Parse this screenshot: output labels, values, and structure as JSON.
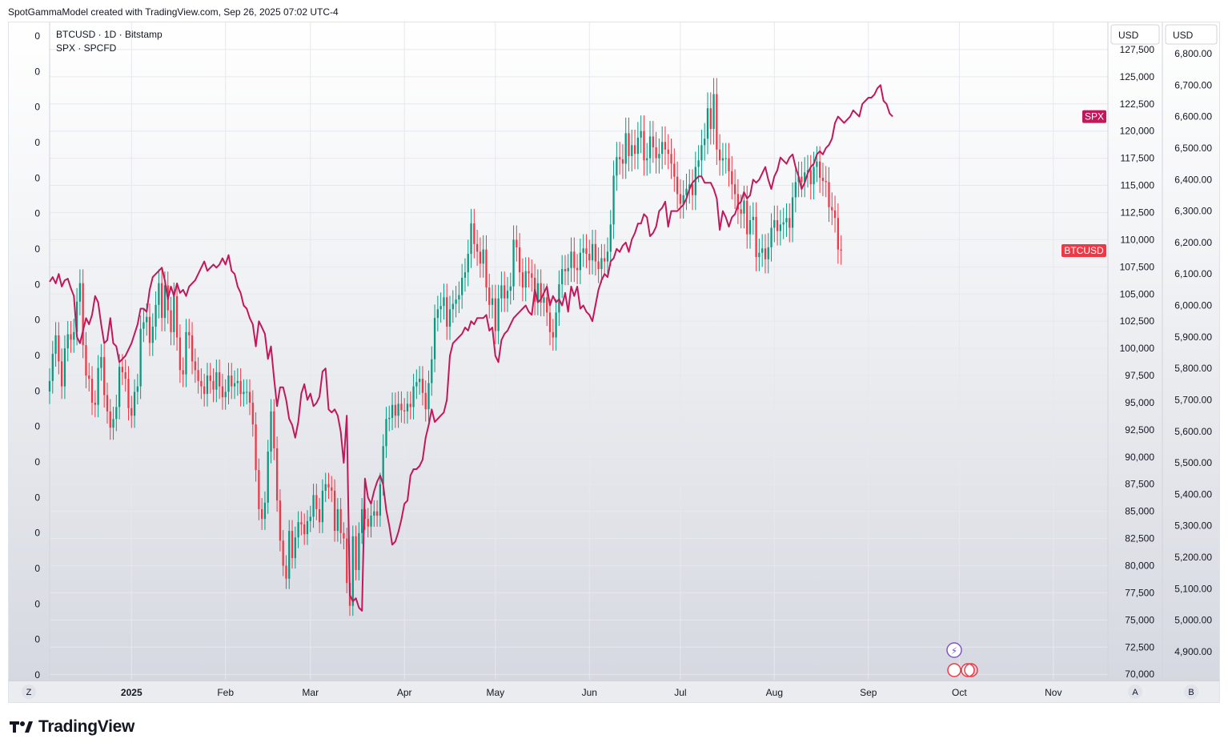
{
  "header": {
    "attribution": "SpotGammaModel created with TradingView.com, Sep 26, 2025 07:02 UTC-4"
  },
  "footer": {
    "brand": "TradingView"
  },
  "legend": {
    "btc": "BTCUSD · 1D · Bitstamp",
    "spx": "SPX · SPCFD"
  },
  "axis_buttons": {
    "left_bottom": "Z",
    "right_a": "A",
    "right_b": "B"
  },
  "right_axis_headers": {
    "btc": "USD",
    "spx": "USD"
  },
  "price_tags": {
    "spx": "SPX",
    "btc": "BTCUSD"
  },
  "colors": {
    "up": "#089981",
    "down": "#f23645",
    "spx_line": "#c2185b",
    "spx_tag": "#c2185b",
    "btc_tag": "#f23645"
  },
  "chart_data": {
    "type": "candlestick+line",
    "x_axis_labels": [
      {
        "date": "2025-01-01",
        "label": "2025",
        "bold": true
      },
      {
        "date": "2025-02-01",
        "label": "Feb"
      },
      {
        "date": "2025-03-01",
        "label": "Mar"
      },
      {
        "date": "2025-04-01",
        "label": "Apr"
      },
      {
        "date": "2025-05-01",
        "label": "May"
      },
      {
        "date": "2025-06-01",
        "label": "Jun"
      },
      {
        "date": "2025-07-01",
        "label": "Jul"
      },
      {
        "date": "2025-08-01",
        "label": "Aug"
      },
      {
        "date": "2025-09-01",
        "label": "Sep"
      },
      {
        "date": "2025-10-01",
        "label": "Oct"
      },
      {
        "date": "2025-11-01",
        "label": "Nov"
      }
    ],
    "x_range": [
      "2024-12-05",
      "2025-11-19"
    ],
    "left_axis_labels": [
      "0",
      "0",
      "0",
      "0",
      "0",
      "0",
      "0",
      "0",
      "0",
      "0",
      "0",
      "0",
      "0",
      "0",
      "0",
      "0",
      "0",
      "0",
      "0"
    ],
    "btc_axis": {
      "unit": "USD",
      "ylim": [
        69500,
        130000
      ],
      "ticks": [
        "127,500",
        "125,000",
        "122,500",
        "120,000",
        "117,500",
        "115,000",
        "112,500",
        "110,000",
        "107,500",
        "105,000",
        "102,500",
        "100,000",
        "97,500",
        "95,000",
        "92,500",
        "90,000",
        "87,500",
        "85,000",
        "82,500",
        "80,000",
        "77,500",
        "75,000",
        "72,500",
        "70,000"
      ]
    },
    "spx_axis": {
      "unit": "USD",
      "ticks": [
        "6,800.00",
        "6,700.00",
        "6,600.00",
        "6,500.00",
        "6,400.00",
        "6,300.00",
        "6,200.00",
        "6,100.00",
        "6,000.00",
        "5,900.00",
        "5,800.00",
        "5,700.00",
        "5,600.00",
        "5,500.00",
        "5,400.00",
        "5,300.00",
        "5,200.00",
        "5,100.00",
        "5,000.00",
        "4,900.00"
      ]
    },
    "btc_series": {
      "name": "BTCUSD",
      "start": "2024-12-05",
      "closes": [
        97000,
        99500,
        101200,
        98800,
        96500,
        100000,
        101300,
        100800,
        101500,
        104300,
        106000,
        100300,
        97500,
        97200,
        95000,
        94800,
        98200,
        99200,
        95700,
        94200,
        92700,
        93500,
        94600,
        98300,
        97800,
        97200,
        94500,
        93800,
        96000,
        96500,
        101800,
        102400,
        102900,
        100500,
        102000,
        104000,
        106000,
        102800,
        105800,
        103500,
        101500,
        104800,
        101000,
        98000,
        97600,
        101500,
        101200,
        98800,
        98000,
        97000,
        96500,
        95800,
        97500,
        97000,
        96200,
        97800,
        96500,
        95500,
        96000,
        97500,
        96500,
        96800,
        97000,
        95800,
        96000,
        96000,
        95000,
        93000,
        88800,
        85200,
        84300,
        85800,
        90500,
        94200,
        90800,
        86000,
        82300,
        80000,
        78800,
        83200,
        80700,
        82600,
        84000,
        83800,
        82900,
        84100,
        84500,
        86500,
        85200,
        84000,
        86900,
        87500,
        87200,
        86900,
        83200,
        85200,
        83000,
        82500,
        78400,
        76300,
        82700,
        79600,
        83000,
        85200,
        84300,
        83600,
        84600,
        85000,
        84600,
        87500,
        91000,
        93500,
        93600,
        94800,
        93800,
        94900,
        94300,
        94200,
        94900,
        94600,
        96500,
        96900,
        97200,
        95900,
        94400,
        96800,
        99000,
        102800,
        103600,
        103900,
        104700,
        102000,
        103600,
        104100,
        104500,
        104900,
        106500,
        107000,
        108700,
        111500,
        109600,
        108900,
        107800,
        109100,
        105600,
        104000,
        104600,
        101600,
        104600,
        105800,
        104600,
        105300,
        105700,
        110000,
        109300,
        107000,
        105600,
        107100,
        106900,
        106500,
        104300,
        106000,
        104200,
        104700,
        103300,
        101500,
        101000,
        103300,
        105900,
        107300,
        107100,
        107400,
        108900,
        107400,
        107200,
        108800,
        109200,
        108700,
        108100,
        109600,
        108000,
        107300,
        108300,
        108000,
        108900,
        111400,
        115900,
        117600,
        117400,
        117000,
        119800,
        117700,
        118700,
        117900,
        119400,
        120000,
        117300,
        117500,
        119500,
        118500,
        117500,
        117900,
        119000,
        118300,
        117900,
        117000,
        115800,
        114200,
        113300,
        114100,
        114700,
        115100,
        114100,
        116700,
        117300,
        118700,
        119300,
        122100,
        120200,
        123400,
        118300,
        117300,
        117500,
        117500,
        116300,
        115100,
        114200,
        112800,
        112400,
        113600,
        110500,
        111800,
        112100,
        108400,
        108800,
        109200,
        108200,
        109300,
        111100,
        111800,
        110800,
        111400,
        111600,
        112000,
        111100,
        113900,
        115300,
        115800,
        115300,
        116200,
        116400,
        115100,
        116700,
        117200,
        115700,
        115400,
        115300,
        113000,
        112700,
        112000,
        109100,
        109000
      ]
    },
    "spx_series": {
      "name": "SPX",
      "start": "2024-12-05",
      "closes": [
        6075,
        6090,
        6070,
        6100,
        6060,
        6080,
        6085,
        6055,
        6030,
        5900,
        5880,
        5920,
        5960,
        5940,
        5970,
        6030,
        6010,
        5940,
        5880,
        5890,
        5960,
        5880,
        5870,
        5820,
        5830,
        5840,
        5860,
        5880,
        5910,
        5940,
        5990,
        5990,
        5980,
        6050,
        6090,
        6100,
        6110,
        6120,
        6080,
        6020,
        6060,
        6030,
        6070,
        6040,
        6050,
        6030,
        6060,
        6070,
        6080,
        6100,
        6120,
        6140,
        6110,
        6120,
        6130,
        6120,
        6130,
        6150,
        6130,
        6160,
        6110,
        6100,
        6060,
        6040,
        6000,
        5990,
        5960,
        5940,
        5870,
        5950,
        5930,
        5910,
        5830,
        5870,
        5770,
        5680,
        5740,
        5740,
        5700,
        5640,
        5620,
        5580,
        5630,
        5720,
        5750,
        5700,
        5720,
        5680,
        5690,
        5710,
        5790,
        5800,
        5670,
        5660,
        5670,
        5650,
        5600,
        5500,
        5650,
        5080,
        5060,
        5070,
        5040,
        5030,
        5450,
        5390,
        5370,
        5410,
        5440,
        5460,
        5430,
        5350,
        5300,
        5240,
        5250,
        5280,
        5320,
        5370,
        5380,
        5460,
        5480,
        5480,
        5490,
        5510,
        5580,
        5620,
        5670,
        5630,
        5640,
        5650,
        5660,
        5700,
        5840,
        5880,
        5890,
        5900,
        5910,
        5930,
        5920,
        5950,
        5940,
        5960,
        5960,
        5960,
        5970,
        5920,
        5930,
        5840,
        5820,
        5890,
        5910,
        5920,
        5940,
        5960,
        5970,
        5980,
        5990,
        6000,
        5980,
        5970,
        6050,
        6010,
        6020,
        6040,
        6060,
        6000,
        6030,
        6010,
        6020,
        6000,
        6040,
        5980,
        6060,
        6030,
        6060,
        5990,
        6000,
        5980,
        5970,
        5950,
        6000,
        6050,
        6080,
        6100,
        6090,
        6140,
        6150,
        6180,
        6170,
        6190,
        6200,
        6170,
        6210,
        6230,
        6260,
        6260,
        6290,
        6280,
        6220,
        6230,
        6250,
        6300,
        6310,
        6330,
        6250,
        6300,
        6300,
        6300,
        6310,
        6320,
        6340,
        6370,
        6390,
        6400,
        6410,
        6410,
        6390,
        6390,
        6390,
        6370,
        6340,
        6240,
        6300,
        6280,
        6250,
        6280,
        6290,
        6320,
        6330,
        6360,
        6340,
        6350,
        6400,
        6390,
        6400,
        6420,
        6440,
        6400,
        6370,
        6410,
        6430,
        6470,
        6460,
        6450,
        6470,
        6480,
        6440,
        6410,
        6370,
        6390,
        6420,
        6440,
        6450,
        6480,
        6490,
        6480,
        6500,
        6510,
        6530,
        6580,
        6600,
        6590,
        6580,
        6590,
        6600,
        6620,
        6610,
        6600,
        6640,
        6650,
        6660,
        6660,
        6670,
        6690,
        6700,
        6650,
        6640,
        6610,
        6600
      ]
    }
  }
}
